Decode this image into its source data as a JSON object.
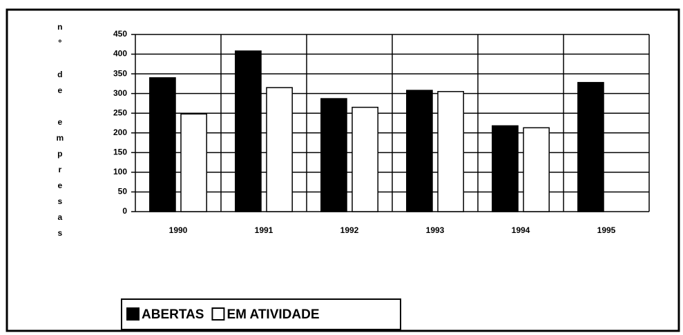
{
  "chart_data": {
    "type": "bar",
    "y_label": "nº de empresas",
    "categories": [
      "1990",
      "1991",
      "1992",
      "1993",
      "1994",
      "1995"
    ],
    "series": [
      {
        "name": "ABERTAS",
        "color": "#000000",
        "values": [
          340,
          408,
          287,
          308,
          218,
          328
        ]
      },
      {
        "name": "EM ATIVIDADE",
        "color": "#ffffff",
        "values": [
          248,
          315,
          265,
          305,
          213,
          null
        ]
      }
    ],
    "ylim": [
      0,
      450
    ],
    "yticks": [
      0,
      50,
      100,
      150,
      200,
      250,
      300,
      350,
      400,
      450
    ],
    "grid": true
  }
}
